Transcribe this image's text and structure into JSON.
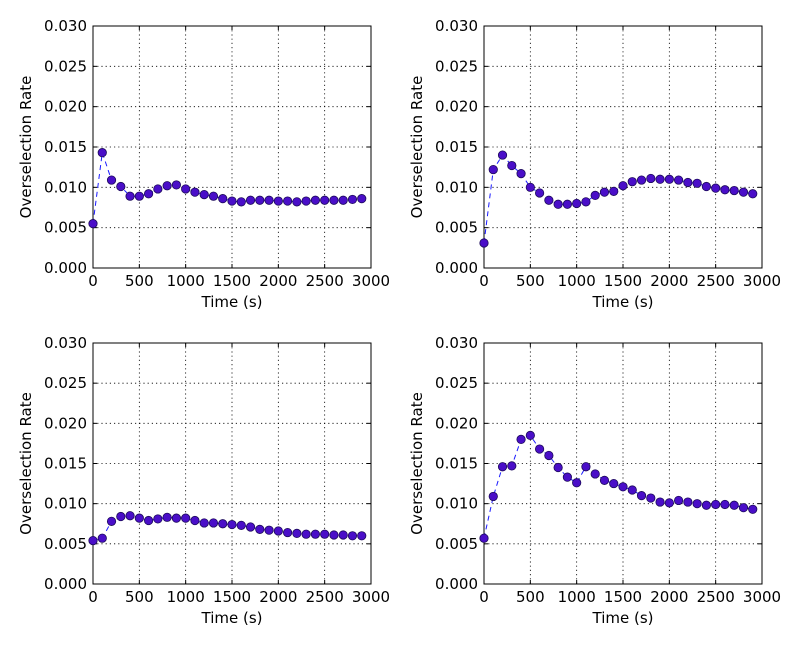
{
  "chart_data": [
    {
      "type": "scatter",
      "title": "",
      "xlabel": "Time (s)",
      "ylabel": "Overselection Rate",
      "xlim": [
        0,
        3000
      ],
      "ylim": [
        0.0,
        0.03
      ],
      "xticks": [
        "0",
        "500",
        "1000",
        "1500",
        "2000",
        "2500",
        "3000"
      ],
      "yticks": [
        "0.000",
        "0.005",
        "0.010",
        "0.015",
        "0.020",
        "0.025",
        "0.030"
      ],
      "grid": true,
      "series": [
        {
          "x": [
            0,
            100,
            200,
            300,
            400,
            500,
            600,
            700,
            800,
            900,
            1000,
            1100,
            1200,
            1300,
            1400,
            1500,
            1600,
            1700,
            1800,
            1900,
            2000,
            2100,
            2200,
            2300,
            2400,
            2500,
            2600,
            2700,
            2800,
            2900
          ],
          "y": [
            0.0055,
            0.0143,
            0.0109,
            0.0101,
            0.0089,
            0.0089,
            0.0092,
            0.0098,
            0.0102,
            0.0103,
            0.0098,
            0.0094,
            0.0091,
            0.0089,
            0.0086,
            0.0083,
            0.0082,
            0.0084,
            0.0084,
            0.0084,
            0.0083,
            0.0083,
            0.0082,
            0.0083,
            0.0084,
            0.0084,
            0.0084,
            0.0084,
            0.0085,
            0.0086
          ]
        }
      ]
    },
    {
      "type": "scatter",
      "title": "",
      "xlabel": "Time (s)",
      "ylabel": "Overselection Rate",
      "xlim": [
        0,
        3000
      ],
      "ylim": [
        0.0,
        0.03
      ],
      "xticks": [
        "0",
        "500",
        "1000",
        "1500",
        "2000",
        "2500",
        "3000"
      ],
      "yticks": [
        "0.000",
        "0.005",
        "0.010",
        "0.015",
        "0.020",
        "0.025",
        "0.030"
      ],
      "grid": true,
      "series": [
        {
          "x": [
            0,
            100,
            200,
            300,
            400,
            500,
            600,
            700,
            800,
            900,
            1000,
            1100,
            1200,
            1300,
            1400,
            1500,
            1600,
            1700,
            1800,
            1900,
            2000,
            2100,
            2200,
            2300,
            2400,
            2500,
            2600,
            2700,
            2800,
            2900
          ],
          "y": [
            0.0031,
            0.0122,
            0.014,
            0.0127,
            0.0117,
            0.01,
            0.0093,
            0.0084,
            0.0079,
            0.0079,
            0.008,
            0.0082,
            0.009,
            0.0094,
            0.0095,
            0.0102,
            0.0107,
            0.0109,
            0.0111,
            0.011,
            0.011,
            0.0109,
            0.0106,
            0.0105,
            0.0101,
            0.0099,
            0.0097,
            0.0096,
            0.0094,
            0.0092
          ]
        }
      ]
    },
    {
      "type": "scatter",
      "title": "",
      "xlabel": "Time (s)",
      "ylabel": "Overselection Rate",
      "xlim": [
        0,
        3000
      ],
      "ylim": [
        0.0,
        0.03
      ],
      "xticks": [
        "0",
        "500",
        "1000",
        "1500",
        "2000",
        "2500",
        "3000"
      ],
      "yticks": [
        "0.000",
        "0.005",
        "0.010",
        "0.015",
        "0.020",
        "0.025",
        "0.030"
      ],
      "grid": true,
      "series": [
        {
          "x": [
            0,
            100,
            200,
            300,
            400,
            500,
            600,
            700,
            800,
            900,
            1000,
            1100,
            1200,
            1300,
            1400,
            1500,
            1600,
            1700,
            1800,
            1900,
            2000,
            2100,
            2200,
            2300,
            2400,
            2500,
            2600,
            2700,
            2800,
            2900
          ],
          "y": [
            0.0054,
            0.0057,
            0.0078,
            0.0084,
            0.0085,
            0.0082,
            0.0079,
            0.0081,
            0.0083,
            0.0082,
            0.0082,
            0.0079,
            0.0076,
            0.0076,
            0.0075,
            0.0074,
            0.0073,
            0.0071,
            0.0068,
            0.0067,
            0.0066,
            0.0064,
            0.0063,
            0.0062,
            0.0062,
            0.0062,
            0.0061,
            0.0061,
            0.006,
            0.006
          ]
        }
      ]
    },
    {
      "type": "scatter",
      "title": "",
      "xlabel": "Time (s)",
      "ylabel": "Overselection Rate",
      "xlim": [
        0,
        3000
      ],
      "ylim": [
        0.0,
        0.03
      ],
      "xticks": [
        "0",
        "500",
        "1000",
        "1500",
        "2000",
        "2500",
        "3000"
      ],
      "yticks": [
        "0.000",
        "0.005",
        "0.010",
        "0.015",
        "0.020",
        "0.025",
        "0.030"
      ],
      "grid": true,
      "series": [
        {
          "x": [
            0,
            100,
            200,
            300,
            400,
            500,
            600,
            700,
            800,
            900,
            1000,
            1100,
            1200,
            1300,
            1400,
            1500,
            1600,
            1700,
            1800,
            1900,
            2000,
            2100,
            2200,
            2300,
            2400,
            2500,
            2600,
            2700,
            2800,
            2900
          ],
          "y": [
            0.0057,
            0.0109,
            0.0146,
            0.0147,
            0.018,
            0.0185,
            0.0168,
            0.016,
            0.0145,
            0.0133,
            0.0126,
            0.0146,
            0.0137,
            0.0129,
            0.0125,
            0.0121,
            0.0117,
            0.011,
            0.0107,
            0.0102,
            0.0101,
            0.0104,
            0.0102,
            0.01,
            0.0098,
            0.0099,
            0.0099,
            0.0098,
            0.0095,
            0.0093
          ]
        }
      ]
    }
  ]
}
